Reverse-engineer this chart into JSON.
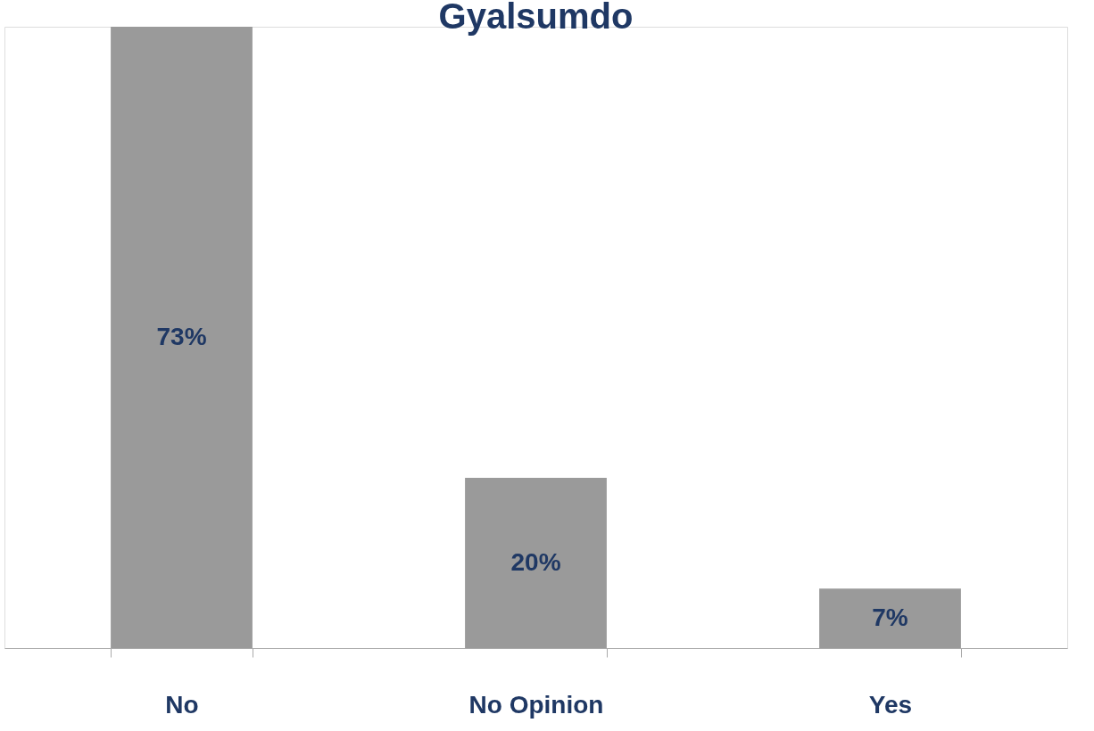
{
  "chart_data": {
    "type": "bar",
    "title": "Gyalsumdo",
    "categories": [
      "No",
      "No Opinion",
      "Yes"
    ],
    "values": [
      73,
      20,
      7
    ],
    "value_labels": [
      "73%",
      "20%",
      "7%"
    ],
    "color": "#9a9a9a",
    "grid": false
  }
}
